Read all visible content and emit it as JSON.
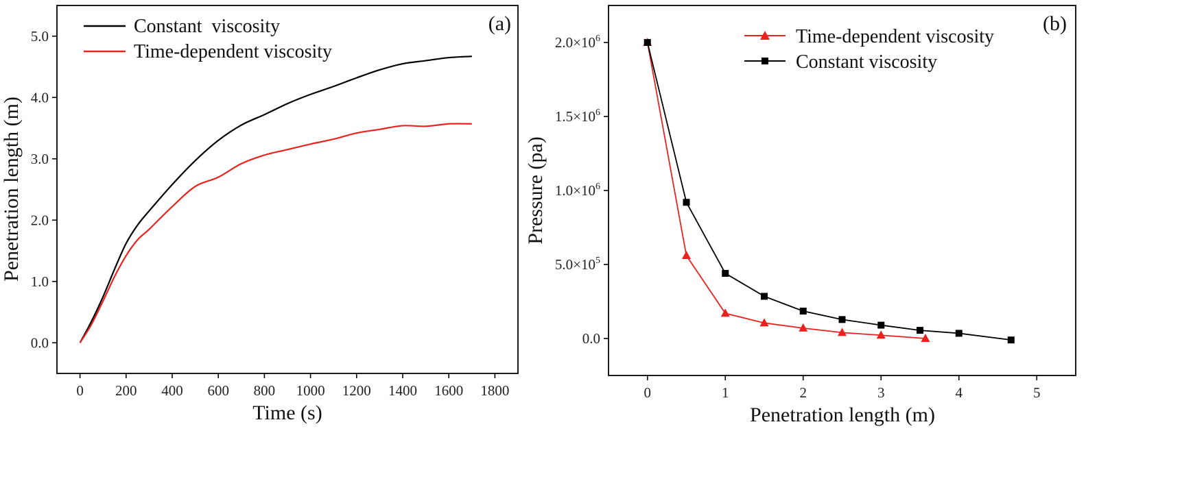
{
  "chart_data": [
    {
      "type": "line",
      "panel_label": "(a)",
      "xlabel": "Time (s)",
      "ylabel": "Penetration length (m)",
      "xlim": [
        -100,
        1900
      ],
      "ylim": [
        -0.5,
        5.5
      ],
      "xticks": [
        0,
        200,
        400,
        600,
        800,
        1000,
        1200,
        1400,
        1600,
        1800
      ],
      "yticks": [
        0.0,
        1.0,
        2.0,
        3.0,
        4.0,
        5.0
      ],
      "xtick_labels": [
        "0",
        "200",
        "400",
        "600",
        "800",
        "1000",
        "1200",
        "1400",
        "1600",
        "1800"
      ],
      "ytick_labels": [
        "0.0",
        "1.0",
        "2.0",
        "3.0",
        "4.0",
        "5.0"
      ],
      "legend_position": "top-left",
      "series": [
        {
          "name": "Constant  viscosity",
          "color": "#000000",
          "x": [
            0,
            50,
            100,
            150,
            200,
            250,
            300,
            400,
            500,
            600,
            700,
            800,
            900,
            1000,
            1100,
            1200,
            1300,
            1400,
            1500,
            1600,
            1700
          ],
          "y": [
            0,
            0.35,
            0.75,
            1.2,
            1.62,
            1.92,
            2.15,
            2.58,
            2.97,
            3.3,
            3.55,
            3.72,
            3.9,
            4.05,
            4.18,
            4.32,
            4.45,
            4.55,
            4.6,
            4.65,
            4.67
          ]
        },
        {
          "name": "Time-dependent viscosity",
          "color": "#e8231f",
          "x": [
            0,
            50,
            100,
            150,
            200,
            250,
            300,
            400,
            500,
            600,
            700,
            800,
            900,
            1000,
            1100,
            1200,
            1300,
            1400,
            1500,
            1600,
            1700
          ],
          "y": [
            0,
            0.3,
            0.68,
            1.08,
            1.42,
            1.68,
            1.85,
            2.22,
            2.55,
            2.7,
            2.92,
            3.06,
            3.15,
            3.24,
            3.32,
            3.42,
            3.48,
            3.54,
            3.53,
            3.57,
            3.57
          ]
        }
      ]
    },
    {
      "type": "line",
      "panel_label": "(b)",
      "xlabel": "Penetration length (m)",
      "ylabel": "Pressure (pa)",
      "xlim": [
        -0.5,
        5.5
      ],
      "ylim": [
        -250000,
        2250000
      ],
      "xticks": [
        0,
        1,
        2,
        3,
        4,
        5
      ],
      "xtick_labels": [
        "0",
        "1",
        "2",
        "3",
        "4",
        "5"
      ],
      "yticks": [
        0,
        500000,
        1000000,
        1500000,
        2000000
      ],
      "ytick_labels": [
        {
          "mant": "0.0",
          "exp": ""
        },
        {
          "mant": "5.0×10",
          "exp": "5"
        },
        {
          "mant": "1.0×10",
          "exp": "6"
        },
        {
          "mant": "1.5×10",
          "exp": "6"
        },
        {
          "mant": "2.0×10",
          "exp": "6"
        }
      ],
      "legend_position": "top-right",
      "series": [
        {
          "name": "Time-dependent viscosity",
          "color": "#e8231f",
          "marker": "triangle",
          "x": [
            0,
            0.5,
            1.0,
            1.5,
            2.0,
            2.5,
            3.0,
            3.57
          ],
          "y": [
            2000000,
            560000,
            170000,
            105000,
            70000,
            40000,
            22000,
            0
          ]
        },
        {
          "name": "Constant viscosity",
          "color": "#000000",
          "marker": "square",
          "x": [
            0,
            0.5,
            1.0,
            1.5,
            2.0,
            2.5,
            3.0,
            3.5,
            4.0,
            4.67
          ],
          "y": [
            2000000,
            920000,
            440000,
            285000,
            185000,
            128000,
            90000,
            55000,
            35000,
            -10000
          ]
        }
      ]
    }
  ]
}
